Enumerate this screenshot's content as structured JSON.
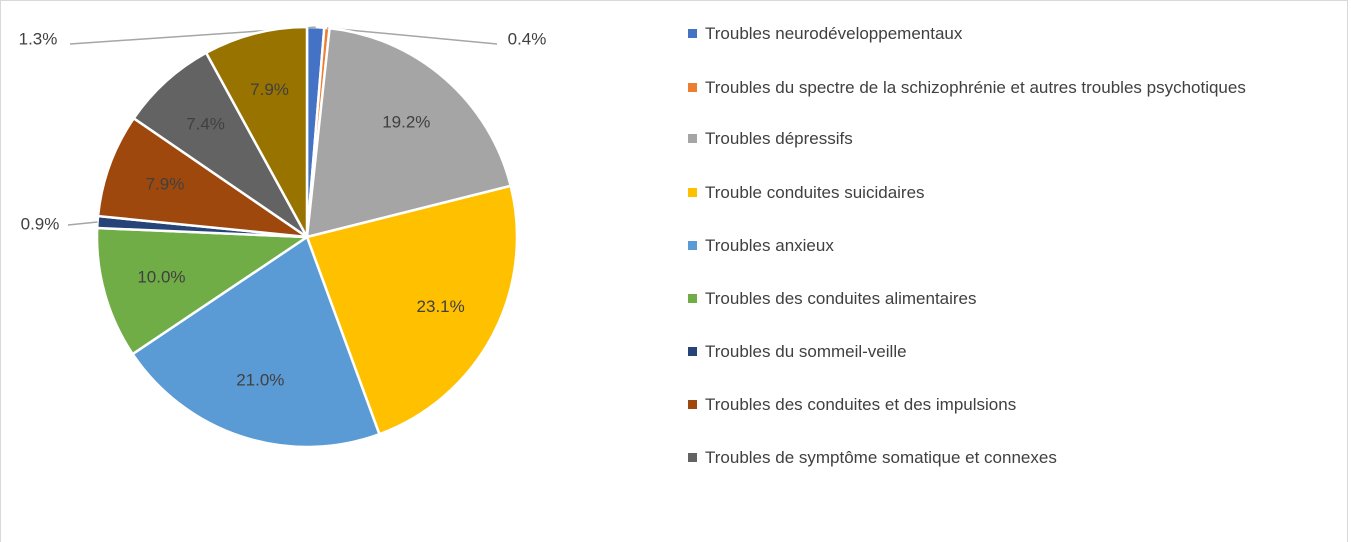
{
  "chart_data": {
    "type": "pie",
    "categories": [
      "Troubles neurodéveloppementaux",
      "Troubles du spectre de la schizophrénie et autres troubles psychotiques",
      "Troubles dépressifs",
      "Trouble conduites suicidaires",
      "Troubles anxieux",
      "Troubles des conduites alimentaires",
      "Troubles du sommeil-veille",
      "Troubles des conduites et des impulsions",
      "Troubles de symptôme somatique et connexes",
      null
    ],
    "values": [
      1.3,
      0.4,
      19.2,
      23.1,
      21.0,
      10.0,
      0.9,
      7.9,
      7.4,
      7.9
    ],
    "value_labels": [
      "1.3%",
      "0.4%",
      "19.2%",
      "23.1%",
      "21.0%",
      "10.0%",
      "0.9%",
      "7.9%",
      "7.4%",
      "7.9%"
    ],
    "colors": [
      "#4472c4",
      "#ed7d31",
      "#a5a5a5",
      "#ffc000",
      "#5b9bd5",
      "#70ad47",
      "#264478",
      "#9e480e",
      "#636363",
      "#997300"
    ],
    "legend": "right"
  }
}
